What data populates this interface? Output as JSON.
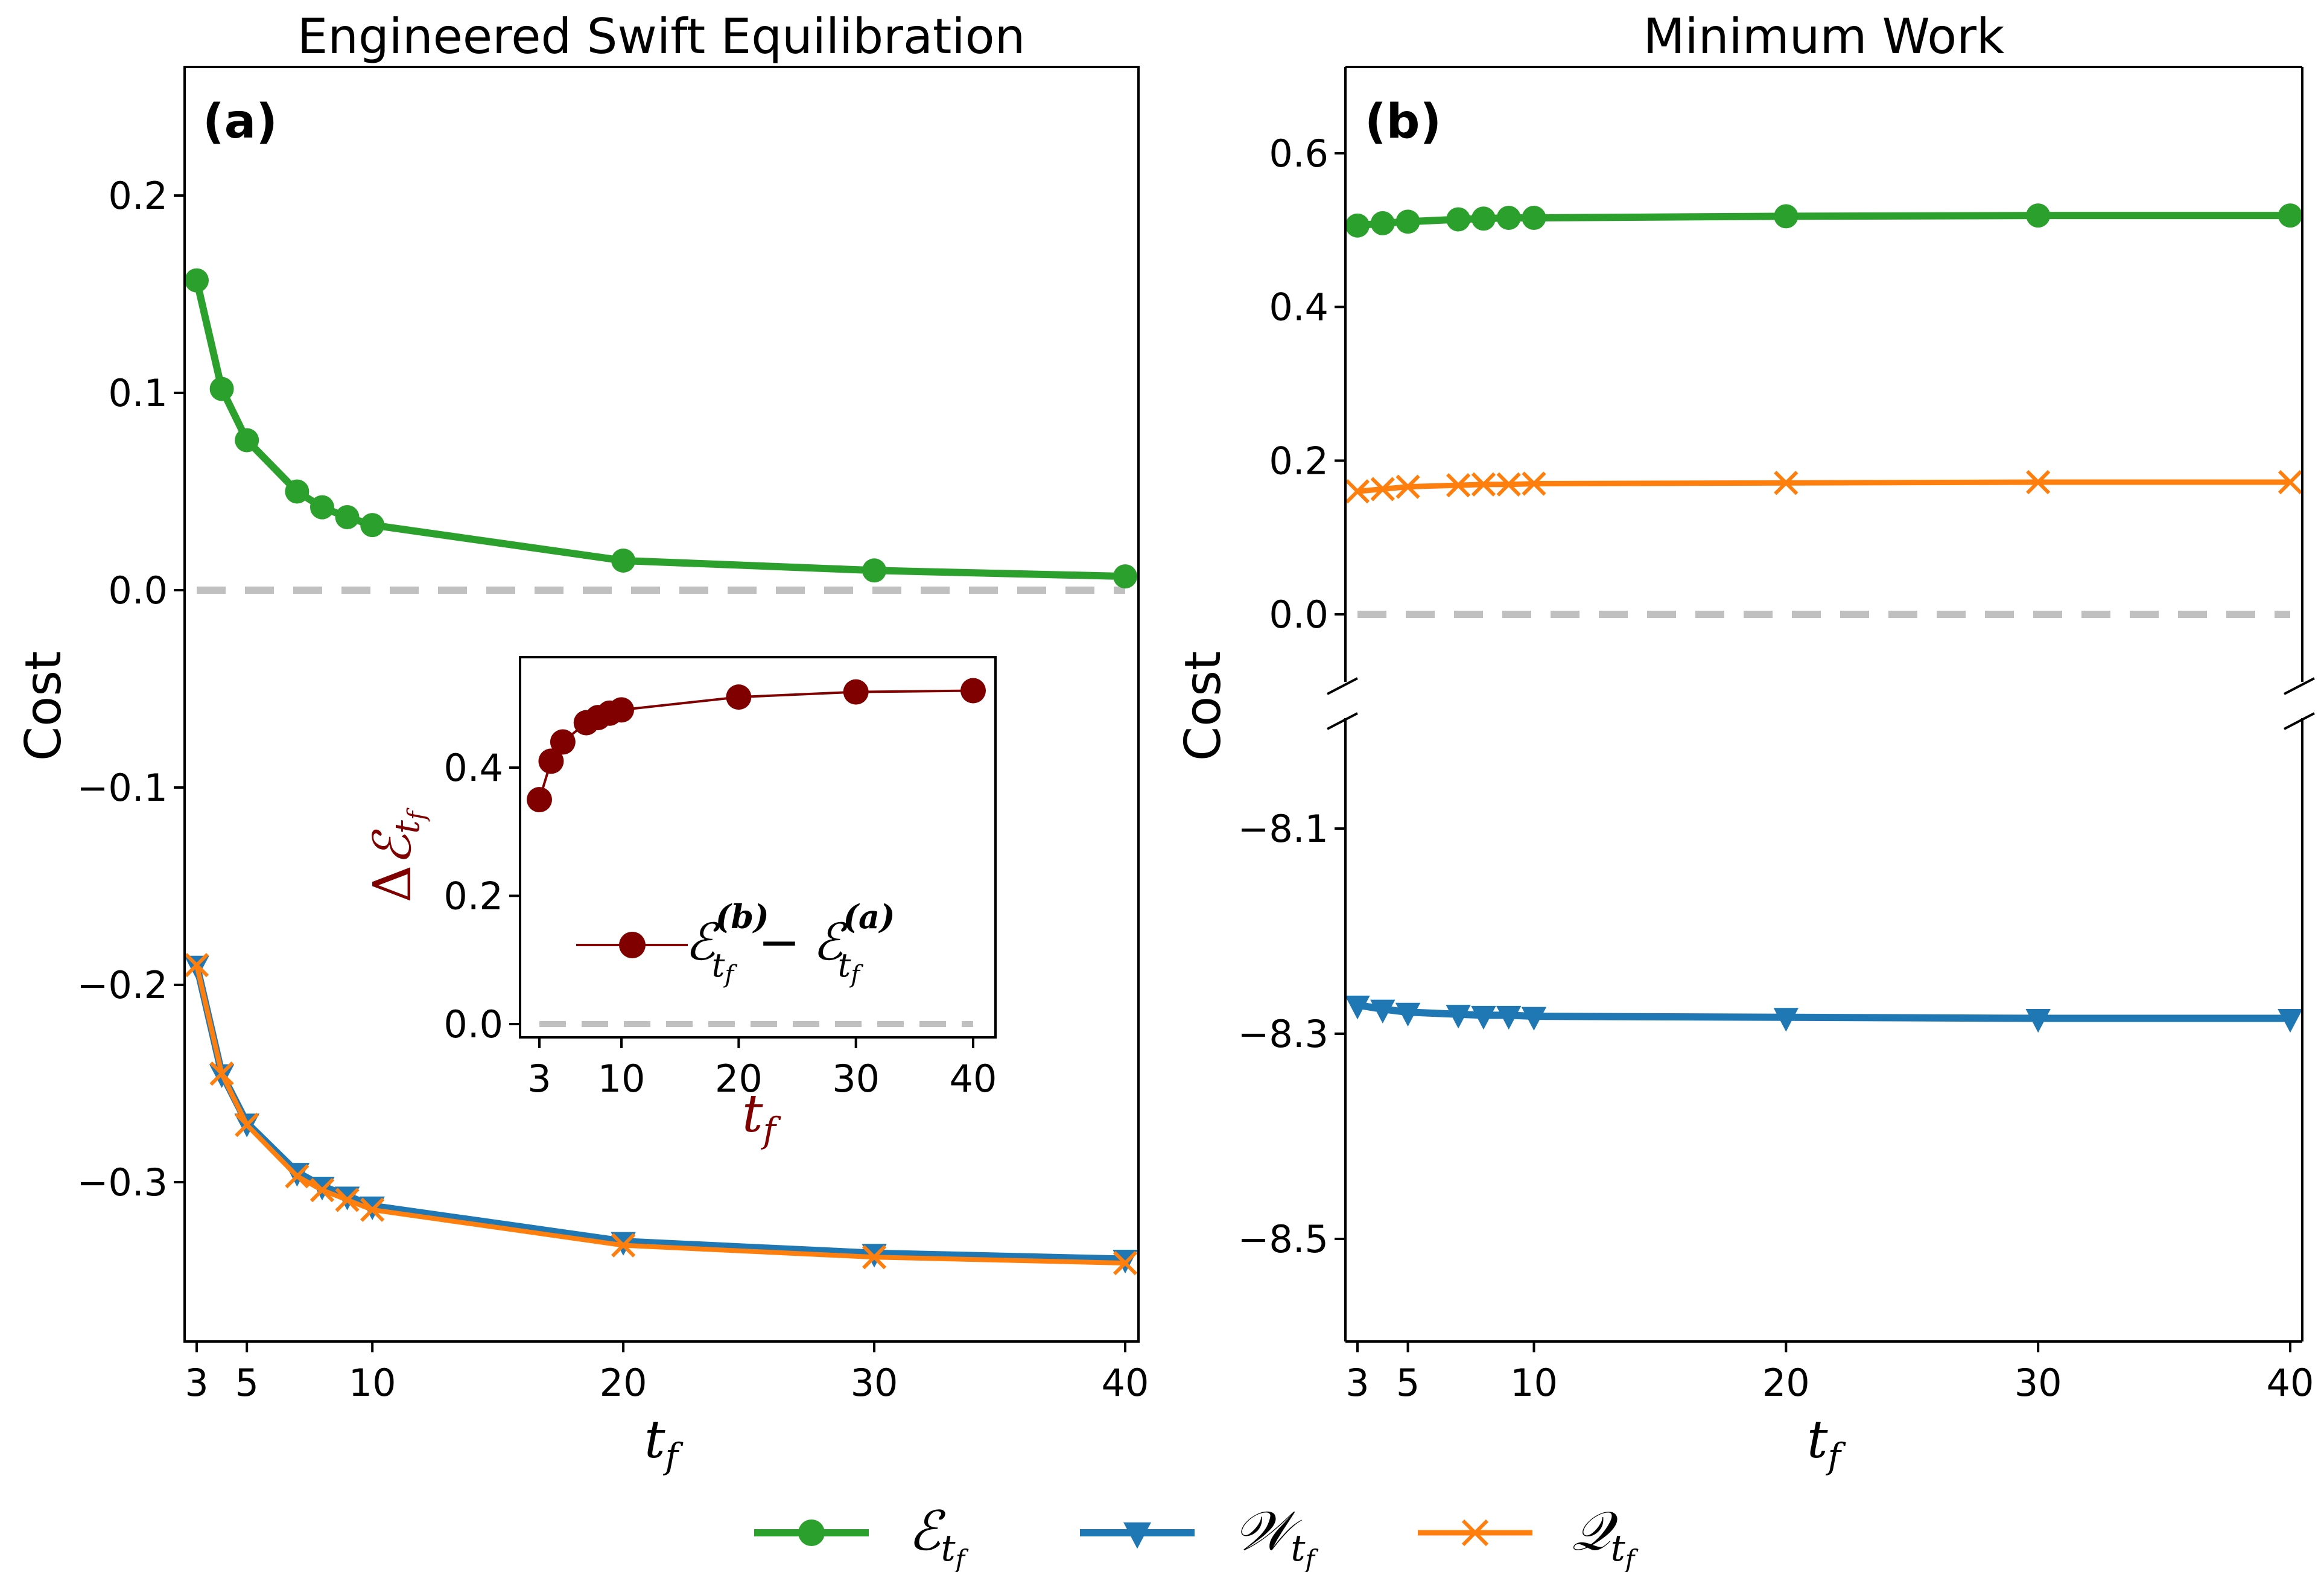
{
  "chart_data": [
    {
      "id": "a",
      "type": "line",
      "title": "Engineered Swift Equilibration",
      "panel_label": "(a)",
      "xlabel": "t_f",
      "ylabel": "Cost",
      "xlim": [
        2.6,
        40.4
      ],
      "ylim": [
        -0.38,
        0.26
      ],
      "xticks": [
        3,
        5,
        10,
        20,
        30,
        40
      ],
      "xtick_labels": [
        "3",
        "5",
        "10",
        "20",
        "30",
        "40"
      ],
      "yticks": [
        0.2,
        0.1,
        0.0,
        -0.1,
        -0.2,
        -0.3
      ],
      "ytick_labels": [
        "0.2",
        "0.1",
        "0.0",
        "−0.1",
        "−0.2",
        "−0.3"
      ],
      "reference_line": {
        "y": 0.0,
        "style": "dashed",
        "color": "#c0c0c0"
      },
      "x": [
        3,
        4,
        5,
        7,
        8,
        9,
        10,
        20,
        30,
        40
      ],
      "series": [
        {
          "name": "E_tf",
          "label": "ℰ",
          "color": "#2ca02c",
          "marker": "circle",
          "values": [
            0.157,
            0.102,
            0.076,
            0.05,
            0.042,
            0.037,
            0.033,
            0.015,
            0.01,
            0.007
          ]
        },
        {
          "name": "W_tf",
          "label": "𝒲",
          "color": "#1f77b4",
          "marker": "triangle-down",
          "values": [
            -0.19,
            -0.245,
            -0.27,
            -0.295,
            -0.302,
            -0.307,
            -0.312,
            -0.33,
            -0.336,
            -0.339
          ]
        },
        {
          "name": "Q_tf",
          "label": "𝒬",
          "color": "#ff7f0e",
          "marker": "x",
          "values": [
            -0.19,
            -0.245,
            -0.271,
            -0.297,
            -0.304,
            -0.309,
            -0.314,
            -0.332,
            -0.338,
            -0.341
          ]
        }
      ],
      "inset": {
        "type": "line",
        "xlabel": "t_f",
        "ylabel": "Δℰ_tf",
        "xlim": [
          1.3,
          41.7
        ],
        "ylim": [
          -0.025,
          0.565
        ],
        "xticks": [
          3,
          10,
          20,
          30,
          40
        ],
        "xtick_labels": [
          "3",
          "10",
          "20",
          "30",
          "40"
        ],
        "yticks": [
          0.0,
          0.2,
          0.4
        ],
        "ytick_labels": [
          "0.0",
          "0.2",
          "0.4"
        ],
        "reference_line": {
          "y": 0.0,
          "style": "dashed",
          "color": "#c0c0c0"
        },
        "series": [
          {
            "name": "E_tf^(b) - E_tf^(a)",
            "color": "#800000",
            "marker": "circle",
            "x": [
              3,
              4,
              5,
              7,
              8,
              9,
              10,
              20,
              30,
              40
            ],
            "values": [
              0.35,
              0.41,
              0.44,
              0.47,
              0.478,
              0.485,
              0.49,
              0.51,
              0.518,
              0.52
            ]
          }
        ],
        "legend": {
          "placement": "center-left",
          "text_main": "ℰ",
          "sup_b": "(b)",
          "sup_a": "(a)",
          "sub": "t",
          "subsub": "f",
          "minus": "−"
        }
      }
    },
    {
      "id": "b",
      "type": "line",
      "title": "Minimum Work",
      "panel_label": "(b)",
      "xlabel": "t_f",
      "ylabel": "Cost",
      "broken_axis": true,
      "upper_ylim": [
        -0.1,
        0.7
      ],
      "lower_ylim": [
        -8.6,
        -8.03
      ],
      "xlim": [
        2.6,
        40.4
      ],
      "xticks": [
        3,
        5,
        10,
        20,
        30,
        40
      ],
      "xtick_labels": [
        "3",
        "5",
        "10",
        "20",
        "30",
        "40"
      ],
      "upper_yticks": [
        0.6,
        0.4,
        0.2,
        0.0
      ],
      "upper_ytick_labels": [
        "0.6",
        "0.4",
        "0.2",
        "0.0"
      ],
      "lower_yticks": [
        -8.1,
        -8.3,
        -8.5
      ],
      "lower_ytick_labels": [
        "−8.1",
        "−8.3",
        "−8.5"
      ],
      "reference_line": {
        "y": 0.0,
        "style": "dashed",
        "color": "#c0c0c0"
      },
      "x": [
        3,
        4,
        5,
        7,
        8,
        9,
        10,
        20,
        30,
        40
      ],
      "series": [
        {
          "name": "E_tf",
          "color": "#2ca02c",
          "marker": "circle",
          "section": "upper",
          "values": [
            0.506,
            0.509,
            0.511,
            0.514,
            0.515,
            0.516,
            0.516,
            0.518,
            0.519,
            0.519
          ]
        },
        {
          "name": "Q_tf",
          "color": "#ff7f0e",
          "marker": "x",
          "section": "upper",
          "values": [
            0.16,
            0.163,
            0.166,
            0.168,
            0.169,
            0.169,
            0.17,
            0.171,
            0.172,
            0.172
          ]
        },
        {
          "name": "W_tf",
          "color": "#1f77b4",
          "marker": "triangle-down",
          "section": "lower",
          "values": [
            -8.272,
            -8.276,
            -8.279,
            -8.281,
            -8.282,
            -8.282,
            -8.283,
            -8.284,
            -8.285,
            -8.285
          ]
        }
      ]
    }
  ],
  "legend": {
    "placement": "bottom-center",
    "entries": [
      {
        "key": "E",
        "symbol": "ℰ",
        "sub": "t",
        "subsub": "f",
        "color": "#2ca02c",
        "marker": "circle"
      },
      {
        "key": "W",
        "symbol": "𝒲",
        "sub": "t",
        "subsub": "f",
        "color": "#1f77b4",
        "marker": "triangle-down"
      },
      {
        "key": "Q",
        "symbol": "𝒬",
        "sub": "t",
        "subsub": "f",
        "color": "#ff7f0e",
        "marker": "x"
      }
    ]
  }
}
